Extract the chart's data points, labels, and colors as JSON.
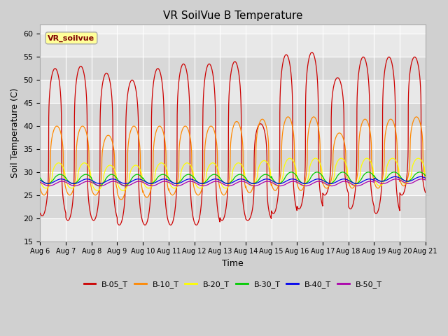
{
  "title": "VR SoilVue B Temperature",
  "xlabel": "Time",
  "ylabel": "Soil Temperature (C)",
  "ylim": [
    15,
    62
  ],
  "yticks": [
    15,
    20,
    25,
    30,
    35,
    40,
    45,
    50,
    55,
    60
  ],
  "num_days": 15,
  "pts_per_day": 240,
  "fig_bg": "#d0d0d0",
  "plot_bg": "#f0f0f0",
  "grid_color": "#ffffff",
  "series": [
    {
      "name": "B-05_T",
      "color": "#cc0000",
      "peak_times": [
        0.58,
        0.58,
        0.58,
        0.58,
        0.58,
        0.58,
        0.58,
        0.58,
        0.58,
        0.58,
        0.58,
        0.58,
        0.58,
        0.58,
        0.58
      ],
      "peak_vals": [
        52.5,
        53.0,
        51.5,
        50.0,
        52.5,
        53.5,
        53.5,
        54.0,
        40.5,
        55.5,
        56.0,
        50.5,
        55.0,
        55.0,
        55.0
      ],
      "trough_vals": [
        20.5,
        19.5,
        19.5,
        18.5,
        18.5,
        18.5,
        18.5,
        19.5,
        19.5,
        21.0,
        22.0,
        25.0,
        22.0,
        21.0,
        25.0
      ],
      "sharpness": 3.5
    },
    {
      "name": "B-10_T",
      "color": "#ff8800",
      "peak_times": [
        0.65,
        0.65,
        0.65,
        0.65,
        0.65,
        0.65,
        0.65,
        0.65,
        0.65,
        0.65,
        0.65,
        0.65,
        0.65,
        0.65,
        0.65
      ],
      "peak_vals": [
        40.0,
        40.0,
        38.0,
        40.0,
        40.0,
        40.0,
        40.0,
        41.0,
        41.5,
        42.0,
        42.0,
        38.5,
        41.5,
        41.5,
        42.0
      ],
      "trough_vals": [
        25.0,
        25.0,
        25.0,
        24.0,
        24.5,
        25.0,
        25.0,
        25.0,
        25.5,
        26.0,
        26.0,
        26.5,
        26.5,
        26.5,
        27.0
      ],
      "sharpness": 2.5
    },
    {
      "name": "B-20_T",
      "color": "#ffff00",
      "peak_times": [
        0.72,
        0.72,
        0.72,
        0.72,
        0.72,
        0.72,
        0.72,
        0.72,
        0.72,
        0.72,
        0.72,
        0.72,
        0.72,
        0.72,
        0.72
      ],
      "peak_vals": [
        32.0,
        32.0,
        31.5,
        31.5,
        32.0,
        32.0,
        32.0,
        32.0,
        32.5,
        33.0,
        33.0,
        33.0,
        33.0,
        33.0,
        33.0
      ],
      "trough_vals": [
        26.5,
        26.5,
        26.0,
        26.0,
        26.5,
        26.5,
        26.5,
        26.5,
        27.0,
        27.0,
        27.0,
        27.0,
        27.0,
        27.0,
        27.5
      ],
      "sharpness": 1.8
    },
    {
      "name": "B-30_T",
      "color": "#00cc00",
      "peak_times": [
        0.78,
        0.78,
        0.78,
        0.78,
        0.78,
        0.78,
        0.78,
        0.78,
        0.78,
        0.78,
        0.78,
        0.78,
        0.78,
        0.78,
        0.78
      ],
      "peak_vals": [
        29.5,
        29.5,
        29.5,
        29.5,
        29.5,
        29.5,
        29.5,
        29.5,
        29.5,
        30.0,
        30.0,
        30.0,
        30.0,
        30.0,
        30.0
      ],
      "trough_vals": [
        27.5,
        27.5,
        27.0,
        27.0,
        27.5,
        27.5,
        27.5,
        27.5,
        27.5,
        27.5,
        27.5,
        27.5,
        27.5,
        28.0,
        28.0
      ],
      "sharpness": 1.2
    },
    {
      "name": "B-40_T",
      "color": "#0000ee",
      "peak_times": [
        0.82,
        0.82,
        0.82,
        0.82,
        0.82,
        0.82,
        0.82,
        0.82,
        0.82,
        0.82,
        0.82,
        0.82,
        0.82,
        0.82,
        0.82
      ],
      "peak_vals": [
        28.5,
        28.5,
        28.5,
        28.5,
        28.5,
        28.5,
        28.5,
        28.5,
        28.5,
        28.5,
        28.5,
        28.5,
        28.5,
        29.0,
        29.0
      ],
      "trough_vals": [
        27.5,
        27.5,
        27.5,
        27.5,
        27.5,
        27.5,
        27.5,
        27.5,
        27.5,
        27.5,
        27.5,
        27.5,
        27.5,
        28.0,
        28.0
      ],
      "sharpness": 1.0
    },
    {
      "name": "B-50_T",
      "color": "#aa00aa",
      "peak_times": [
        0.85,
        0.85,
        0.85,
        0.85,
        0.85,
        0.85,
        0.85,
        0.85,
        0.85,
        0.85,
        0.85,
        0.85,
        0.85,
        0.85,
        0.85
      ],
      "peak_vals": [
        28.0,
        28.0,
        28.0,
        28.0,
        28.0,
        28.0,
        28.0,
        28.0,
        28.0,
        28.0,
        28.0,
        28.0,
        28.0,
        28.5,
        28.5
      ],
      "trough_vals": [
        27.0,
        27.0,
        27.0,
        27.0,
        27.0,
        27.0,
        27.0,
        27.0,
        27.0,
        27.0,
        27.0,
        27.0,
        27.0,
        27.5,
        27.5
      ],
      "sharpness": 1.0
    }
  ],
  "legend_label": "VR_soilvue",
  "legend_box_facecolor": "#ffff99",
  "legend_box_edgecolor": "#aaaaaa",
  "xtick_labels": [
    "Aug 6",
    "Aug 7",
    "Aug 8",
    "Aug 9",
    "Aug 10",
    "Aug 11",
    "Aug 12",
    "Aug 13",
    "Aug 14",
    "Aug 15",
    "Aug 16",
    "Aug 17",
    "Aug 18",
    "Aug 19",
    "Aug 20",
    "Aug 21"
  ],
  "band_colors": [
    "#e8e8e8",
    "#d8d8d8"
  ]
}
